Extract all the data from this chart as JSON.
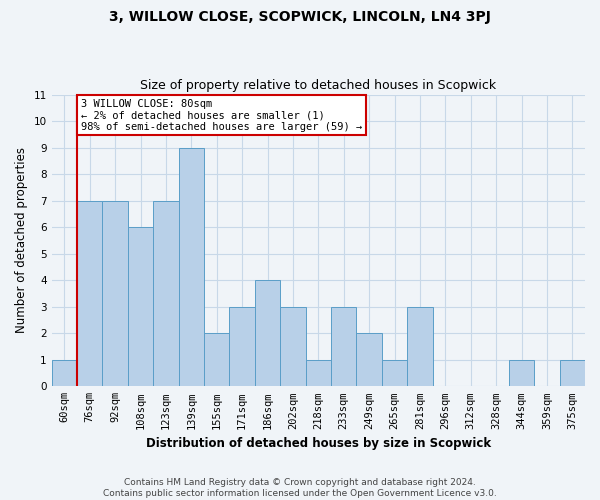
{
  "title": "3, WILLOW CLOSE, SCOPWICK, LINCOLN, LN4 3PJ",
  "subtitle": "Size of property relative to detached houses in Scopwick",
  "xlabel": "Distribution of detached houses by size in Scopwick",
  "ylabel": "Number of detached properties",
  "footer_line1": "Contains HM Land Registry data © Crown copyright and database right 2024.",
  "footer_line2": "Contains public sector information licensed under the Open Government Licence v3.0.",
  "categories": [
    "60sqm",
    "76sqm",
    "92sqm",
    "108sqm",
    "123sqm",
    "139sqm",
    "155sqm",
    "171sqm",
    "186sqm",
    "202sqm",
    "218sqm",
    "233sqm",
    "249sqm",
    "265sqm",
    "281sqm",
    "296sqm",
    "312sqm",
    "328sqm",
    "344sqm",
    "359sqm",
    "375sqm"
  ],
  "values": [
    1,
    7,
    7,
    6,
    7,
    9,
    2,
    3,
    4,
    3,
    1,
    3,
    2,
    1,
    3,
    0,
    0,
    0,
    1,
    0,
    1
  ],
  "bar_color": "#b8d0e8",
  "bar_edge_color": "#5a9ec8",
  "vline_x_index": 1,
  "vline_color": "#cc0000",
  "annotation_line1": "3 WILLOW CLOSE: 80sqm",
  "annotation_line2": "← 2% of detached houses are smaller (1)",
  "annotation_line3": "98% of semi-detached houses are larger (59) →",
  "annotation_box_color": "#ffffff",
  "annotation_border_color": "#cc0000",
  "ylim": [
    0,
    11
  ],
  "yticks": [
    0,
    1,
    2,
    3,
    4,
    5,
    6,
    7,
    8,
    9,
    10,
    11
  ],
  "background_color": "#f0f4f8",
  "grid_color": "#c8d8e8",
  "title_fontsize": 10,
  "subtitle_fontsize": 9,
  "axis_label_fontsize": 8.5,
  "tick_fontsize": 7.5,
  "annotation_fontsize": 7.5,
  "footer_fontsize": 6.5
}
